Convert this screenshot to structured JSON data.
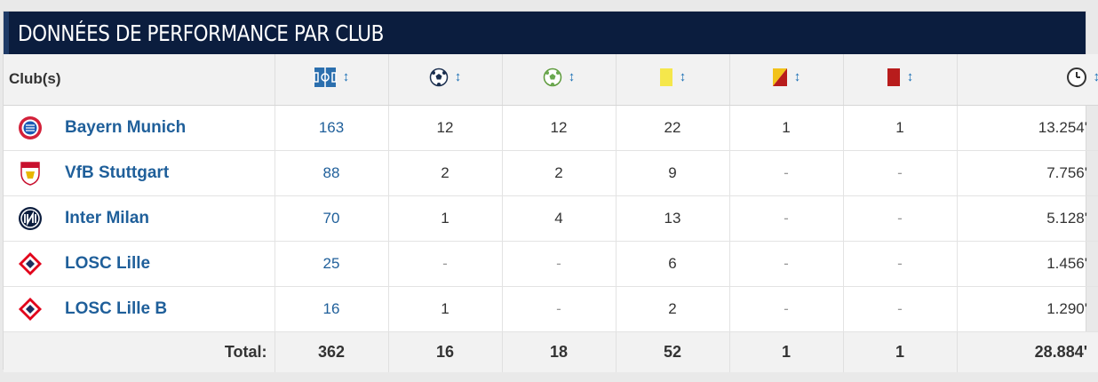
{
  "title": "DONNÉES DE PERFORMANCE PAR CLUB",
  "columns": {
    "club": "Club(s)",
    "icons": [
      "appearances-icon",
      "goals-icon",
      "assists-icon",
      "yellow-card-icon",
      "second-yellow-icon",
      "red-card-icon",
      "minutes-clock-icon"
    ],
    "sort_symbol": "↕"
  },
  "rows": [
    {
      "club": "Bayern Munich",
      "crest": "bayern-crest-icon",
      "appearances": "163",
      "goals": "12",
      "assists": "12",
      "yellow": "22",
      "yellow_red": "1",
      "red": "1",
      "minutes": "13.254'"
    },
    {
      "club": "VfB Stuttgart",
      "crest": "stuttgart-crest-icon",
      "appearances": "88",
      "goals": "2",
      "assists": "2",
      "yellow": "9",
      "yellow_red": "-",
      "red": "-",
      "minutes": "7.756'"
    },
    {
      "club": "Inter Milan",
      "crest": "inter-crest-icon",
      "appearances": "70",
      "goals": "1",
      "assists": "4",
      "yellow": "13",
      "yellow_red": "-",
      "red": "-",
      "minutes": "5.128'"
    },
    {
      "club": "LOSC Lille",
      "crest": "lille-crest-icon",
      "appearances": "25",
      "goals": "-",
      "assists": "-",
      "yellow": "6",
      "yellow_red": "-",
      "red": "-",
      "minutes": "1.456'"
    },
    {
      "club": "LOSC Lille B",
      "crest": "lille-crest-icon",
      "appearances": "16",
      "goals": "1",
      "assists": "-",
      "yellow": "2",
      "yellow_red": "-",
      "red": "-",
      "minutes": "1.290'"
    }
  ],
  "totals": {
    "label": "Total:",
    "appearances": "362",
    "goals": "16",
    "assists": "18",
    "yellow": "52",
    "yellow_red": "1",
    "red": "1",
    "minutes": "28.884'"
  },
  "colors": {
    "header_bg": "#0b1d3e",
    "link": "#1f5f9a",
    "sort": "#1a6fb5",
    "yellow_card": "#f5e74b",
    "red_card": "#b81c1c"
  }
}
